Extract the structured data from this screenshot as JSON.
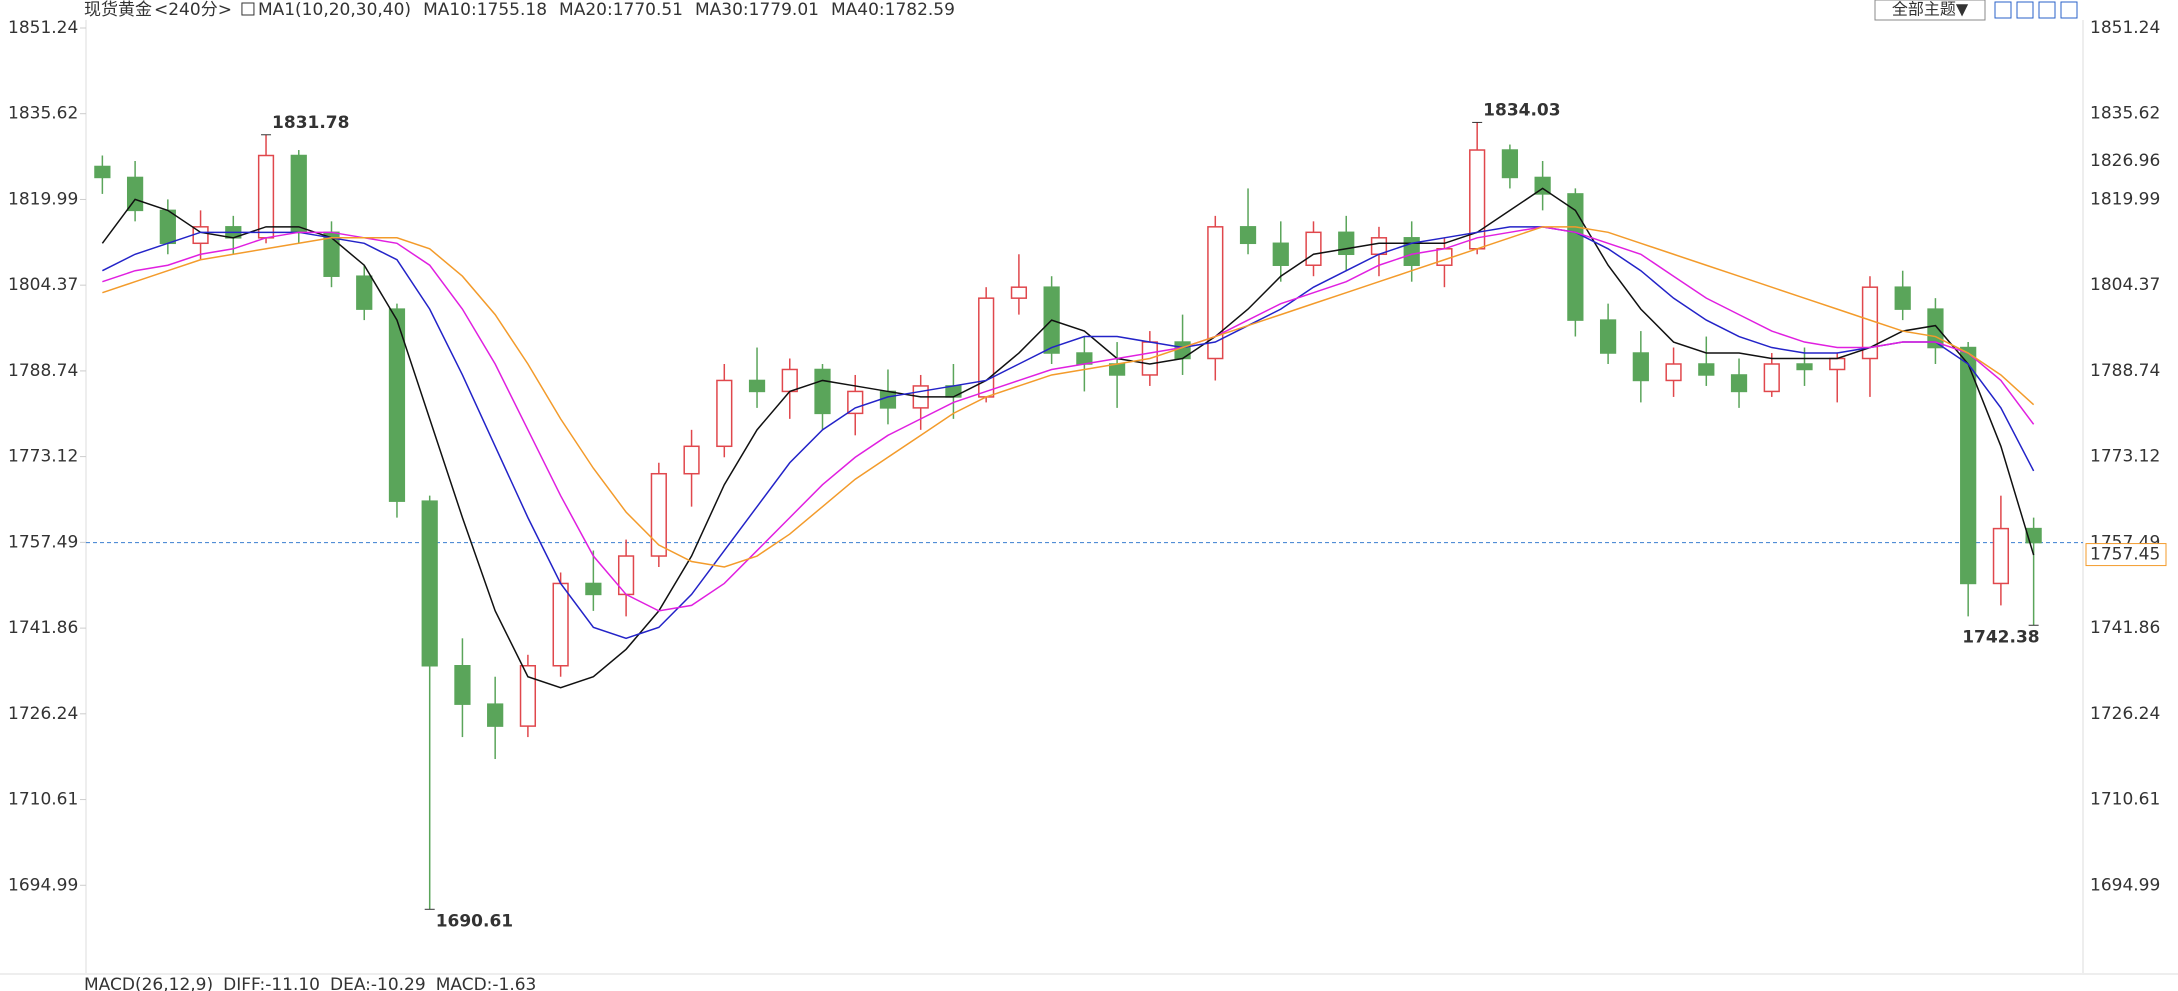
{
  "chart_data": {
    "type": "candlestick",
    "title": "现货黄金",
    "period": "<240分>",
    "indicator": "MA1(10,20,30,40)",
    "theme_button": "全部主题▼",
    "ylim": [
      1679,
      1851.24
    ],
    "yticks": [
      1851.24,
      1835.62,
      1819.99,
      1804.37,
      1788.74,
      1773.12,
      1757.49,
      1741.86,
      1726.24,
      1710.61,
      1694.99
    ],
    "up_color": "#e0474c",
    "down_color": "#5aa55a",
    "open": [
      1826,
      1824,
      1818,
      1812,
      1815,
      1813,
      1828,
      1814,
      1806,
      1800,
      1765,
      1735,
      1728,
      1724,
      1735,
      1750,
      1748,
      1755,
      1770,
      1775,
      1787,
      1785,
      1789,
      1781,
      1785,
      1782,
      1786,
      1784,
      1802,
      1804,
      1792,
      1790,
      1788,
      1794,
      1791,
      1815,
      1812,
      1808,
      1814,
      1810,
      1813,
      1808,
      1811,
      1829,
      1824,
      1821,
      1798,
      1792,
      1787,
      1790,
      1788,
      1785,
      1790,
      1789,
      1791,
      1804,
      1800,
      1793,
      1750,
      1760
    ],
    "high": [
      1828,
      1827,
      1820,
      1818,
      1817,
      1831.78,
      1829,
      1816,
      1808,
      1801,
      1766,
      1740,
      1733,
      1737,
      1752,
      1756,
      1758,
      1772,
      1778,
      1790,
      1793,
      1791,
      1790,
      1788,
      1789,
      1788,
      1790,
      1804,
      1810,
      1806,
      1795,
      1794,
      1796,
      1799,
      1817,
      1822,
      1816,
      1816,
      1817,
      1815,
      1816,
      1813,
      1834.03,
      1830,
      1827,
      1822,
      1801,
      1796,
      1793,
      1795,
      1791,
      1792,
      1793,
      1792,
      1806,
      1807,
      1802,
      1794,
      1766,
      1762
    ],
    "low": [
      1821,
      1816,
      1810,
      1809,
      1810,
      1812,
      1812,
      1804,
      1798,
      1762,
      1690.61,
      1722,
      1718,
      1722,
      1733,
      1745,
      1744,
      1753,
      1764,
      1773,
      1782,
      1780,
      1778,
      1777,
      1779,
      1778,
      1780,
      1783,
      1799,
      1790,
      1785,
      1782,
      1786,
      1788,
      1787,
      1810,
      1805,
      1806,
      1807,
      1806,
      1805,
      1804,
      1810,
      1822,
      1818,
      1795,
      1790,
      1783,
      1784,
      1786,
      1782,
      1784,
      1786,
      1783,
      1784,
      1798,
      1790,
      1744,
      1746,
      1742.38
    ],
    "close": [
      1824,
      1818,
      1812,
      1815,
      1813,
      1828,
      1814,
      1806,
      1800,
      1765,
      1735,
      1728,
      1724,
      1735,
      1750,
      1748,
      1755,
      1770,
      1775,
      1787,
      1785,
      1789,
      1781,
      1785,
      1782,
      1786,
      1784,
      1802,
      1804,
      1792,
      1790,
      1788,
      1794,
      1791,
      1815,
      1812,
      1808,
      1814,
      1810,
      1813,
      1808,
      1811,
      1829,
      1824,
      1821,
      1798,
      1792,
      1787,
      1790,
      1788,
      1785,
      1790,
      1789,
      1791,
      1804,
      1800,
      1793,
      1750,
      1760,
      1757.45
    ],
    "high_value_labels": [
      null,
      null,
      null,
      null,
      null,
      "1831.78",
      null,
      null,
      null,
      null,
      null,
      null,
      null,
      null,
      null,
      null,
      null,
      null,
      null,
      null,
      null,
      null,
      null,
      null,
      null,
      null,
      null,
      null,
      null,
      null,
      null,
      null,
      null,
      null,
      null,
      null,
      null,
      null,
      null,
      null,
      null,
      null,
      "1834.03",
      null,
      null,
      null,
      null,
      null,
      null,
      null,
      null,
      null,
      null,
      null,
      null,
      null,
      null,
      null,
      null,
      null
    ],
    "low_value_labels": [
      null,
      null,
      null,
      null,
      null,
      null,
      null,
      null,
      null,
      null,
      "1690.61",
      null,
      null,
      null,
      null,
      null,
      null,
      null,
      null,
      null,
      null,
      null,
      null,
      null,
      null,
      null,
      null,
      null,
      null,
      null,
      null,
      null,
      null,
      null,
      null,
      null,
      null,
      null,
      null,
      null,
      null,
      null,
      null,
      null,
      null,
      null,
      null,
      null,
      null,
      null,
      null,
      null,
      null,
      null,
      null,
      null,
      null,
      null,
      null,
      "1742.38"
    ],
    "right_marker": {
      "value": 1826.96,
      "color": "#f39b2b"
    },
    "last_price_color": "#f39b2b",
    "series": [
      {
        "name": "MA10:1755.18",
        "color": "#111111",
        "values": [
          1812,
          1820,
          1818,
          1814,
          1813,
          1815,
          1815,
          1813,
          1808,
          1798,
          1780,
          1762,
          1745,
          1733,
          1731,
          1733,
          1738,
          1745,
          1755,
          1768,
          1778,
          1785,
          1787,
          1786,
          1785,
          1784,
          1784,
          1787,
          1792,
          1798,
          1796,
          1791,
          1790,
          1791,
          1795,
          1800,
          1806,
          1810,
          1811,
          1812,
          1812,
          1812,
          1814,
          1818,
          1822,
          1818,
          1808,
          1800,
          1794,
          1792,
          1792,
          1791,
          1791,
          1791,
          1793,
          1796,
          1797,
          1790,
          1775,
          1755.18
        ]
      },
      {
        "name": "MA20:1770.51",
        "color": "#2323c8",
        "values": [
          1807,
          1810,
          1812,
          1814,
          1814,
          1814,
          1814,
          1813,
          1812,
          1809,
          1800,
          1788,
          1775,
          1762,
          1750,
          1742,
          1740,
          1742,
          1748,
          1756,
          1764,
          1772,
          1778,
          1782,
          1784,
          1785,
          1786,
          1787,
          1790,
          1793,
          1795,
          1795,
          1794,
          1793,
          1794,
          1797,
          1800,
          1804,
          1807,
          1810,
          1812,
          1813,
          1814,
          1815,
          1815,
          1814,
          1811,
          1807,
          1802,
          1798,
          1795,
          1793,
          1792,
          1792,
          1793,
          1794,
          1794,
          1790,
          1782,
          1770.51
        ]
      },
      {
        "name": "MA30:1779.01",
        "color": "#e020e0",
        "values": [
          1805,
          1807,
          1808,
          1810,
          1811,
          1813,
          1814,
          1814,
          1813,
          1812,
          1808,
          1800,
          1790,
          1778,
          1766,
          1755,
          1748,
          1745,
          1746,
          1750,
          1756,
          1762,
          1768,
          1773,
          1777,
          1780,
          1783,
          1785,
          1787,
          1789,
          1790,
          1791,
          1792,
          1793,
          1795,
          1798,
          1801,
          1803,
          1805,
          1808,
          1810,
          1811,
          1813,
          1814,
          1815,
          1814,
          1812,
          1810,
          1806,
          1802,
          1799,
          1796,
          1794,
          1793,
          1793,
          1794,
          1794,
          1792,
          1787,
          1779.01
        ]
      },
      {
        "name": "MA40:1782.59",
        "color": "#f39b2b",
        "values": [
          1803,
          1805,
          1807,
          1809,
          1810,
          1811,
          1812,
          1813,
          1813,
          1813,
          1811,
          1806,
          1799,
          1790,
          1780,
          1771,
          1763,
          1757,
          1754,
          1753,
          1755,
          1759,
          1764,
          1769,
          1773,
          1777,
          1781,
          1784,
          1786,
          1788,
          1789,
          1790,
          1791,
          1793,
          1795,
          1797,
          1799,
          1801,
          1803,
          1805,
          1807,
          1809,
          1811,
          1813,
          1815,
          1815,
          1814,
          1812,
          1810,
          1808,
          1806,
          1804,
          1802,
          1800,
          1798,
          1796,
          1795,
          1792,
          1788,
          1782.59
        ]
      }
    ],
    "macd": {
      "label": "MACD(26,12,9)",
      "diff": "DIFF:-11.10",
      "dea": "DEA:-10.29",
      "macd": "MACD:-1.63"
    },
    "macd_colors": {
      "diff": "#111111",
      "dea": "#2323c8",
      "macd": "#e020e0"
    }
  }
}
